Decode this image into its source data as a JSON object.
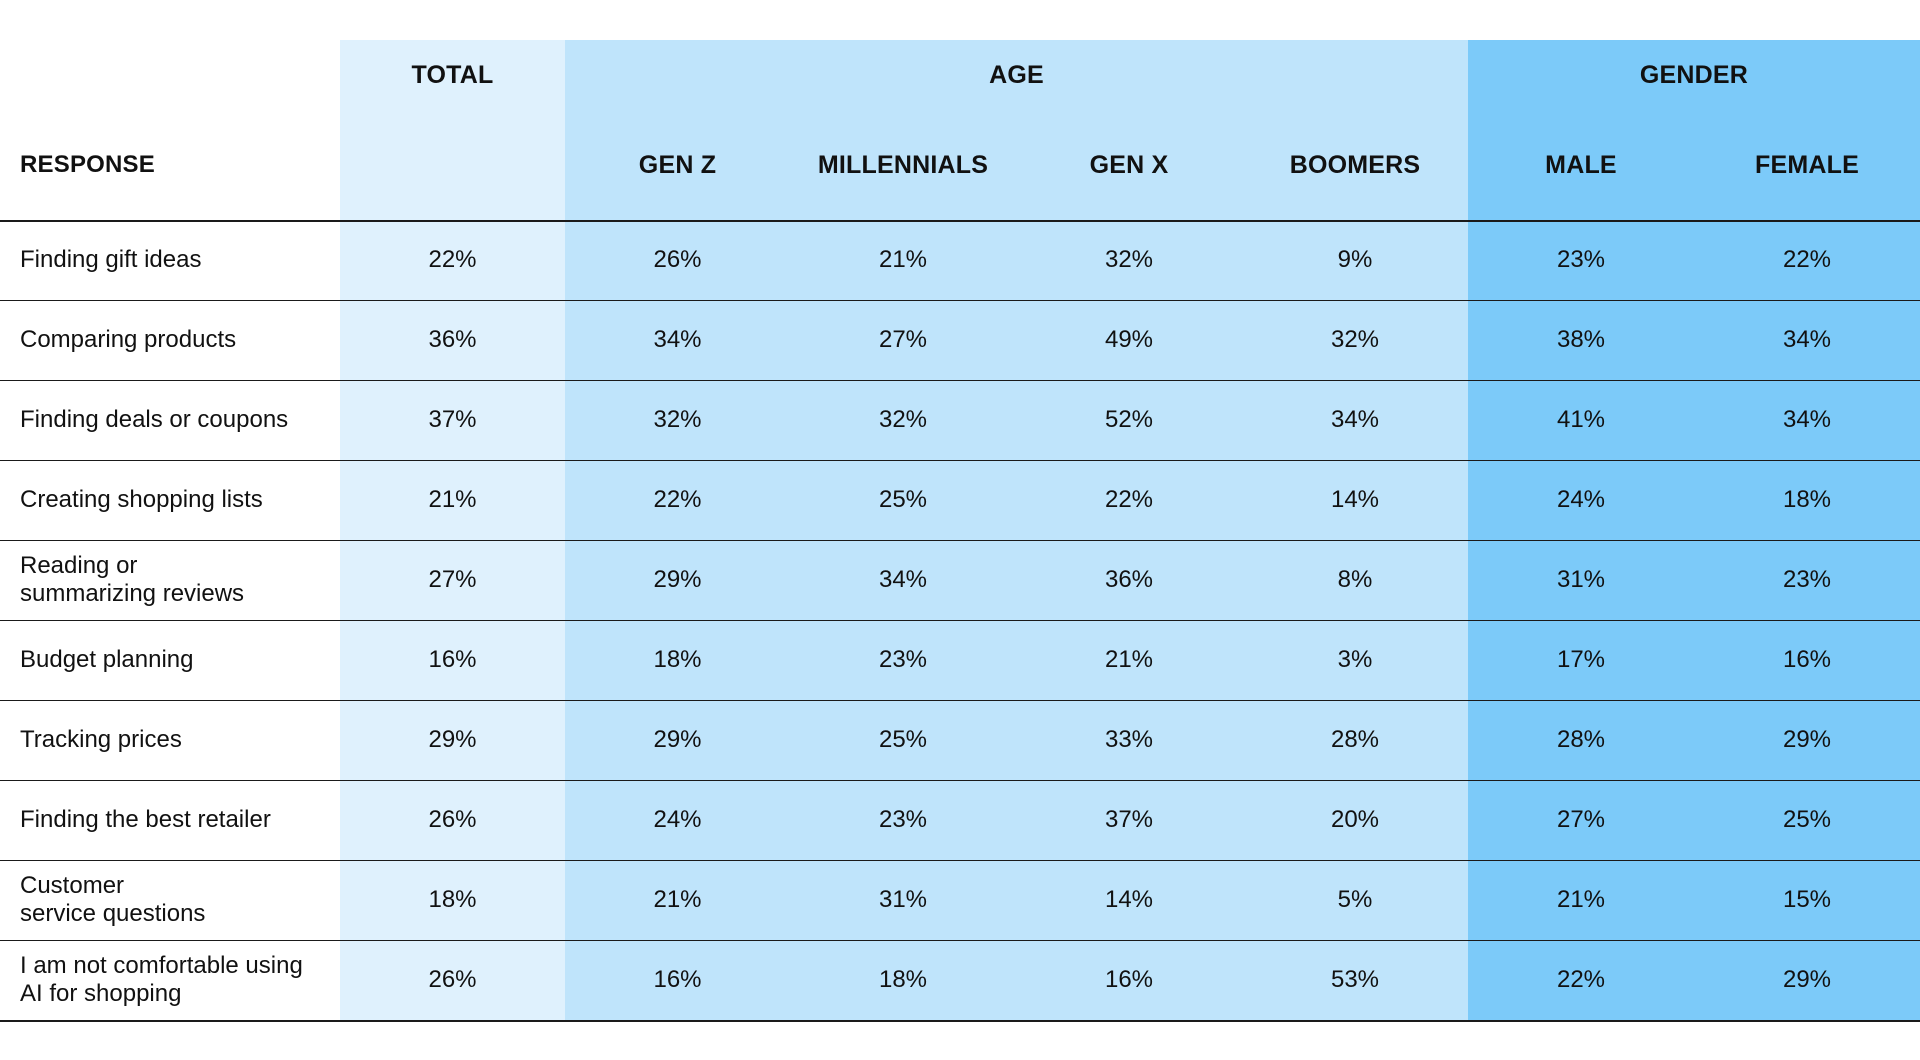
{
  "chart_data": {
    "type": "table",
    "header": {
      "response": "RESPONSE",
      "groups": [
        {
          "label": "TOTAL",
          "span": 1
        },
        {
          "label": "AGE",
          "span": 4
        },
        {
          "label": "GENDER",
          "span": 2
        }
      ],
      "columns": [
        "",
        "GEN Z",
        "MILLENNIALS",
        "GEN X",
        "BOOMERS",
        "MALE",
        "FEMALE"
      ]
    },
    "rows": [
      {
        "label": "Finding gift ideas",
        "values": [
          "22%",
          "26%",
          "21%",
          "32%",
          "9%",
          "23%",
          "22%"
        ]
      },
      {
        "label": "Comparing products",
        "values": [
          "36%",
          "34%",
          "27%",
          "49%",
          "32%",
          "38%",
          "34%"
        ]
      },
      {
        "label": "Finding deals or coupons",
        "values": [
          "37%",
          "32%",
          "32%",
          "52%",
          "34%",
          "41%",
          "34%"
        ]
      },
      {
        "label": "Creating shopping lists",
        "values": [
          "21%",
          "22%",
          "25%",
          "22%",
          "14%",
          "24%",
          "18%"
        ]
      },
      {
        "label": "Reading or\nsummarizing reviews",
        "values": [
          "27%",
          "29%",
          "34%",
          "36%",
          "8%",
          "31%",
          "23%"
        ]
      },
      {
        "label": "Budget planning",
        "values": [
          "16%",
          "18%",
          "23%",
          "21%",
          "3%",
          "17%",
          "16%"
        ]
      },
      {
        "label": "Tracking prices",
        "values": [
          "29%",
          "29%",
          "25%",
          "33%",
          "28%",
          "28%",
          "29%"
        ]
      },
      {
        "label": "Finding the best retailer",
        "values": [
          "26%",
          "24%",
          "23%",
          "37%",
          "20%",
          "27%",
          "25%"
        ]
      },
      {
        "label": "Customer\nservice questions",
        "values": [
          "18%",
          "21%",
          "31%",
          "14%",
          "5%",
          "21%",
          "15%"
        ]
      },
      {
        "label": "I am not comfortable using\nAI for shopping",
        "values": [
          "26%",
          "16%",
          "18%",
          "16%",
          "53%",
          "22%",
          "29%"
        ]
      }
    ],
    "colors": {
      "total_band": "#dff1fd",
      "age_band": "#bfe4fb",
      "gender_band": "#7ccaf9"
    }
  }
}
